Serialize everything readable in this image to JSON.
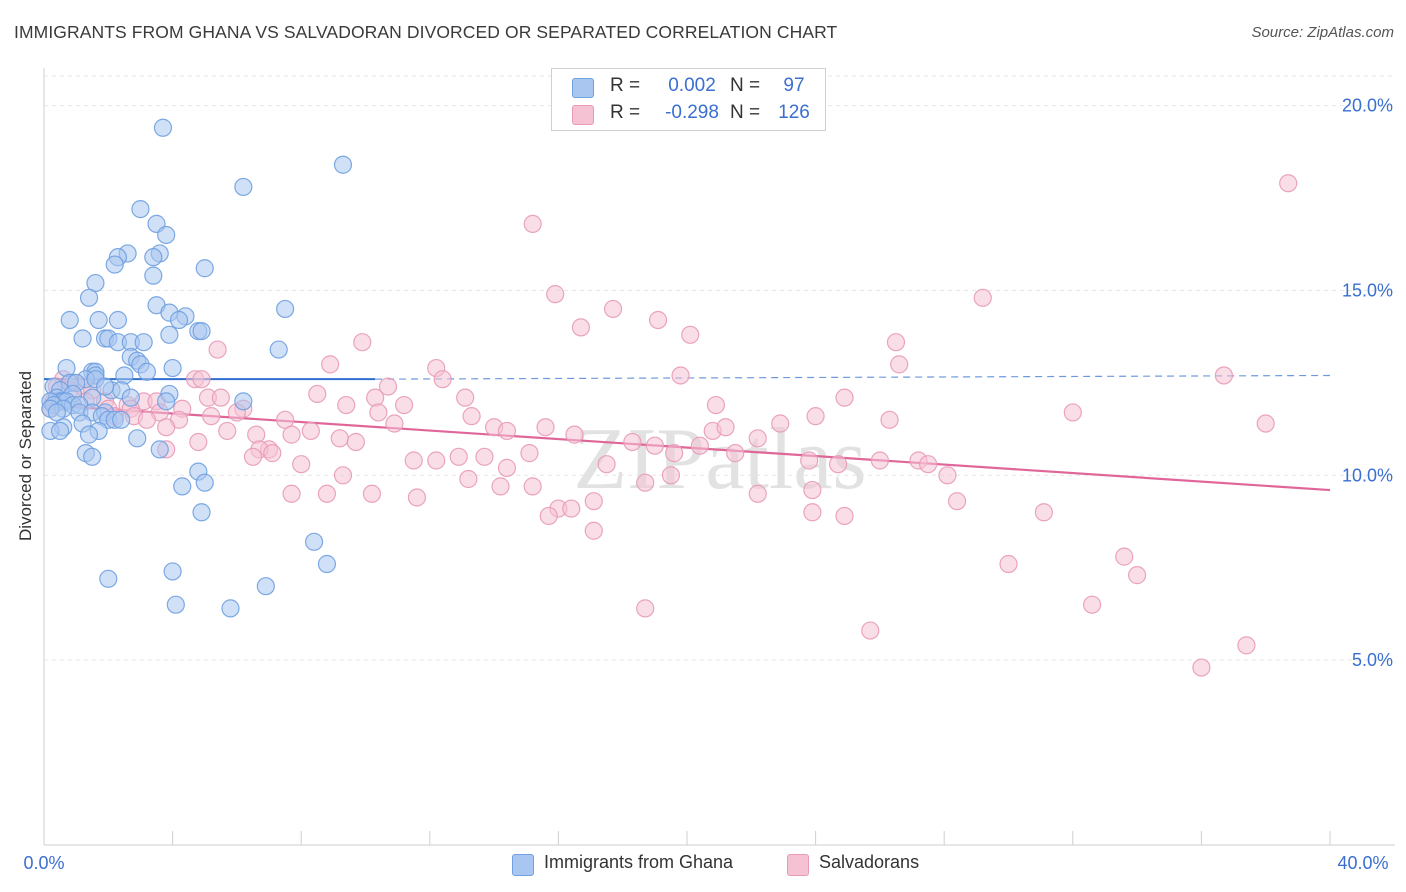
{
  "title": "IMMIGRANTS FROM GHANA VS SALVADORAN DIVORCED OR SEPARATED CORRELATION CHART",
  "source": "Source: ZipAtlas.com",
  "watermark": "ZIPatlas",
  "colors": {
    "blue": "#6fa0e0",
    "blue_fill": "#a9c6f0",
    "blue_line": "#2f6fd0",
    "pink": "#e89ab8",
    "pink_fill": "#f5c2d4",
    "pink_line": "#e0669a",
    "axis_text": "#3a6fd0",
    "grid": "#e6e6e6"
  },
  "legend": {
    "rows": [
      {
        "r_label": "R =",
        "r_value": "0.002",
        "n_label": "N =",
        "n_value": "97",
        "color": "#a9c6f0"
      },
      {
        "r_label": "R =",
        "r_value": "-0.298",
        "n_label": "N =",
        "n_value": "126",
        "color": "#f5c2d4"
      }
    ]
  },
  "bottom_legend": [
    {
      "label": "Immigrants from Ghana",
      "color": "#a9c6f0"
    },
    {
      "label": "Salvadorans",
      "color": "#f5c2d4"
    }
  ],
  "chart_data": {
    "type": "scatter",
    "title": "IMMIGRANTS FROM GHANA VS SALVADORAN DIVORCED OR SEPARATED CORRELATION CHART",
    "xlabel": "",
    "ylabel": "Divorced or Separated",
    "xlim": [
      0,
      40
    ],
    "ylim": [
      0,
      20.8
    ],
    "x_tick_labels": [
      "0.0%",
      "40.0%"
    ],
    "y_ticks": [
      5,
      10,
      15,
      20
    ],
    "y_tick_labels": [
      "5.0%",
      "10.0%",
      "15.0%",
      "20.0%"
    ],
    "grid": true,
    "series": [
      {
        "name": "Immigrants from Ghana",
        "r": 0.002,
        "n": 97,
        "trend": {
          "x0": 0,
          "y0": 12.6,
          "x1": 10.3,
          "y1": 12.6,
          "dashed_to_x": 40,
          "dashed_to_y": 12.7
        },
        "points": [
          [
            3.7,
            19.4
          ],
          [
            9.3,
            18.4
          ],
          [
            6.2,
            17.8
          ],
          [
            3.0,
            17.2
          ],
          [
            3.5,
            16.8
          ],
          [
            3.8,
            16.5
          ],
          [
            2.6,
            16.0
          ],
          [
            2.3,
            15.9
          ],
          [
            3.6,
            16.0
          ],
          [
            3.4,
            15.9
          ],
          [
            2.2,
            15.7
          ],
          [
            5.0,
            15.6
          ],
          [
            3.4,
            15.4
          ],
          [
            1.6,
            15.2
          ],
          [
            1.4,
            14.8
          ],
          [
            3.5,
            14.6
          ],
          [
            7.5,
            14.5
          ],
          [
            3.9,
            14.4
          ],
          [
            4.4,
            14.3
          ],
          [
            0.8,
            14.2
          ],
          [
            1.7,
            14.2
          ],
          [
            2.3,
            14.2
          ],
          [
            4.2,
            14.2
          ],
          [
            4.8,
            13.9
          ],
          [
            4.9,
            13.9
          ],
          [
            3.9,
            13.8
          ],
          [
            1.2,
            13.7
          ],
          [
            1.9,
            13.7
          ],
          [
            2.0,
            13.7
          ],
          [
            2.3,
            13.6
          ],
          [
            2.7,
            13.6
          ],
          [
            3.1,
            13.6
          ],
          [
            7.3,
            13.4
          ],
          [
            2.7,
            13.2
          ],
          [
            2.9,
            13.1
          ],
          [
            3.0,
            13.0
          ],
          [
            0.7,
            12.9
          ],
          [
            4.0,
            12.9
          ],
          [
            1.5,
            12.8
          ],
          [
            1.6,
            12.8
          ],
          [
            3.2,
            12.8
          ],
          [
            1.6,
            12.7
          ],
          [
            2.5,
            12.7
          ],
          [
            1.3,
            12.6
          ],
          [
            1.6,
            12.6
          ],
          [
            0.8,
            12.5
          ],
          [
            1.0,
            12.5
          ],
          [
            0.3,
            12.4
          ],
          [
            0.5,
            12.3
          ],
          [
            2.1,
            12.3
          ],
          [
            2.4,
            12.3
          ],
          [
            3.9,
            12.2
          ],
          [
            0.9,
            12.2
          ],
          [
            1.5,
            12.1
          ],
          [
            0.4,
            12.1
          ],
          [
            0.5,
            12.0
          ],
          [
            0.6,
            12.0
          ],
          [
            0.7,
            12.0
          ],
          [
            0.2,
            12.0
          ],
          [
            0.3,
            11.9
          ],
          [
            0.9,
            11.9
          ],
          [
            1.1,
            11.9
          ],
          [
            0.6,
            11.8
          ],
          [
            0.2,
            11.8
          ],
          [
            0.4,
            11.7
          ],
          [
            1.1,
            11.7
          ],
          [
            1.5,
            11.7
          ],
          [
            1.9,
            11.7
          ],
          [
            1.8,
            11.6
          ],
          [
            2.0,
            11.5
          ],
          [
            2.2,
            11.5
          ],
          [
            2.4,
            11.5
          ],
          [
            1.2,
            11.4
          ],
          [
            0.6,
            11.3
          ],
          [
            0.2,
            11.2
          ],
          [
            1.7,
            11.2
          ],
          [
            0.5,
            11.2
          ],
          [
            1.4,
            11.1
          ],
          [
            2.9,
            11.0
          ],
          [
            3.6,
            10.7
          ],
          [
            1.3,
            10.6
          ],
          [
            1.5,
            10.5
          ],
          [
            6.2,
            12.0
          ],
          [
            4.8,
            10.1
          ],
          [
            5.0,
            9.8
          ],
          [
            4.3,
            9.7
          ],
          [
            4.9,
            9.0
          ],
          [
            8.4,
            8.2
          ],
          [
            8.8,
            7.6
          ],
          [
            4.0,
            7.4
          ],
          [
            2.0,
            7.2
          ],
          [
            6.9,
            7.0
          ],
          [
            4.1,
            6.5
          ],
          [
            5.8,
            6.4
          ],
          [
            3.8,
            12.0
          ],
          [
            1.9,
            12.4
          ],
          [
            2.7,
            12.1
          ]
        ]
      },
      {
        "name": "Salvadorans",
        "r": -0.298,
        "n": 126,
        "trend": {
          "x0": 0,
          "y0": 11.9,
          "x1": 40,
          "y1": 9.6
        },
        "points": [
          [
            38.7,
            17.9
          ],
          [
            15.2,
            16.8
          ],
          [
            15.9,
            14.9
          ],
          [
            29.2,
            14.8
          ],
          [
            17.7,
            14.5
          ],
          [
            19.1,
            14.2
          ],
          [
            16.7,
            14.0
          ],
          [
            20.1,
            13.8
          ],
          [
            9.9,
            13.6
          ],
          [
            5.4,
            13.4
          ],
          [
            26.5,
            13.6
          ],
          [
            26.6,
            13.0
          ],
          [
            8.9,
            13.0
          ],
          [
            12.2,
            12.9
          ],
          [
            36.7,
            12.7
          ],
          [
            19.8,
            12.7
          ],
          [
            4.7,
            12.6
          ],
          [
            4.9,
            12.6
          ],
          [
            12.4,
            12.6
          ],
          [
            0.6,
            12.6
          ],
          [
            0.9,
            12.5
          ],
          [
            1.2,
            12.4
          ],
          [
            0.4,
            12.4
          ],
          [
            10.7,
            12.4
          ],
          [
            1.5,
            12.3
          ],
          [
            0.8,
            12.3
          ],
          [
            8.5,
            12.2
          ],
          [
            13.1,
            12.1
          ],
          [
            5.1,
            12.1
          ],
          [
            5.5,
            12.1
          ],
          [
            10.3,
            12.1
          ],
          [
            24.9,
            12.1
          ],
          [
            0.3,
            12.0
          ],
          [
            1.3,
            12.0
          ],
          [
            1.9,
            12.0
          ],
          [
            3.1,
            12.0
          ],
          [
            3.5,
            12.0
          ],
          [
            2.6,
            11.9
          ],
          [
            9.4,
            11.9
          ],
          [
            20.9,
            11.9
          ],
          [
            11.2,
            11.9
          ],
          [
            0.2,
            11.8
          ],
          [
            4.3,
            11.8
          ],
          [
            6.2,
            11.8
          ],
          [
            2.0,
            11.8
          ],
          [
            2.7,
            11.8
          ],
          [
            10.4,
            11.7
          ],
          [
            6.0,
            11.7
          ],
          [
            3.6,
            11.7
          ],
          [
            32.0,
            11.7
          ],
          [
            2.2,
            11.6
          ],
          [
            2.8,
            11.6
          ],
          [
            13.3,
            11.6
          ],
          [
            5.2,
            11.6
          ],
          [
            24.0,
            11.6
          ],
          [
            3.2,
            11.5
          ],
          [
            4.2,
            11.5
          ],
          [
            7.5,
            11.5
          ],
          [
            26.3,
            11.5
          ],
          [
            10.9,
            11.4
          ],
          [
            22.9,
            11.4
          ],
          [
            3.8,
            11.3
          ],
          [
            14.0,
            11.3
          ],
          [
            15.6,
            11.3
          ],
          [
            20.8,
            11.2
          ],
          [
            21.2,
            11.3
          ],
          [
            38.0,
            11.4
          ],
          [
            14.4,
            11.2
          ],
          [
            5.7,
            11.2
          ],
          [
            7.7,
            11.1
          ],
          [
            8.3,
            11.2
          ],
          [
            9.2,
            11.0
          ],
          [
            6.6,
            11.1
          ],
          [
            16.5,
            11.1
          ],
          [
            22.2,
            11.0
          ],
          [
            4.8,
            10.9
          ],
          [
            9.7,
            10.9
          ],
          [
            18.3,
            10.9
          ],
          [
            19.0,
            10.8
          ],
          [
            20.4,
            10.8
          ],
          [
            7.0,
            10.7
          ],
          [
            6.7,
            10.7
          ],
          [
            7.1,
            10.6
          ],
          [
            15.1,
            10.6
          ],
          [
            19.6,
            10.6
          ],
          [
            21.5,
            10.6
          ],
          [
            12.9,
            10.5
          ],
          [
            13.7,
            10.5
          ],
          [
            3.8,
            10.7
          ],
          [
            6.5,
            10.5
          ],
          [
            17.5,
            10.3
          ],
          [
            11.5,
            10.4
          ],
          [
            12.2,
            10.4
          ],
          [
            23.8,
            10.4
          ],
          [
            26.0,
            10.4
          ],
          [
            27.2,
            10.4
          ],
          [
            27.5,
            10.3
          ],
          [
            8.0,
            10.3
          ],
          [
            24.7,
            10.3
          ],
          [
            14.4,
            10.2
          ],
          [
            9.3,
            10.0
          ],
          [
            28.1,
            10.0
          ],
          [
            19.5,
            10.0
          ],
          [
            13.2,
            9.9
          ],
          [
            18.7,
            9.8
          ],
          [
            15.2,
            9.7
          ],
          [
            14.2,
            9.7
          ],
          [
            23.9,
            9.6
          ],
          [
            10.2,
            9.5
          ],
          [
            8.8,
            9.5
          ],
          [
            7.7,
            9.5
          ],
          [
            22.2,
            9.5
          ],
          [
            11.6,
            9.4
          ],
          [
            17.1,
            9.3
          ],
          [
            28.4,
            9.3
          ],
          [
            16.0,
            9.1
          ],
          [
            23.9,
            9.0
          ],
          [
            31.1,
            9.0
          ],
          [
            15.7,
            8.9
          ],
          [
            16.4,
            9.1
          ],
          [
            17.1,
            8.5
          ],
          [
            24.9,
            8.9
          ],
          [
            30.0,
            7.6
          ],
          [
            33.6,
            7.8
          ],
          [
            34.0,
            7.3
          ],
          [
            32.6,
            6.5
          ],
          [
            18.7,
            6.4
          ],
          [
            25.7,
            5.8
          ],
          [
            37.4,
            5.4
          ],
          [
            36.0,
            4.8
          ]
        ]
      }
    ]
  }
}
